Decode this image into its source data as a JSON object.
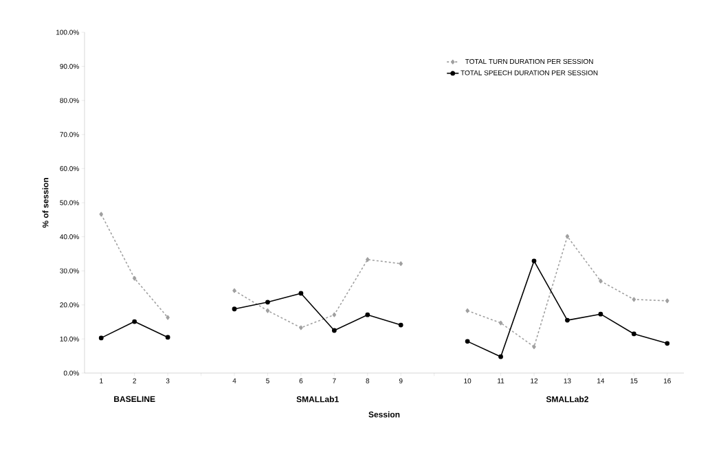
{
  "chart_data": {
    "type": "line",
    "xlabel": "Session",
    "ylabel": "% of session",
    "categories": [
      "1",
      "2",
      "3",
      null,
      "4",
      "5",
      "6",
      "7",
      "8",
      "9",
      null,
      "10",
      "11",
      "12",
      "13",
      "14",
      "15",
      "16"
    ],
    "series": [
      {
        "name": "TOTAL TURN DURATION PER SESSION",
        "color": "#a0a0a0",
        "marker": "diamond",
        "line_style": "dashed",
        "values": [
          46.6,
          27.8,
          16.3,
          null,
          24.2,
          18.3,
          13.3,
          17.1,
          33.3,
          32.1,
          null,
          18.3,
          14.7,
          7.7,
          40.1,
          27.0,
          21.6,
          21.2
        ]
      },
      {
        "name": "TOTAL SPEECH DURATION PER SESSION",
        "color": "#000000",
        "marker": "circle",
        "line_style": "solid",
        "values": [
          10.3,
          15.1,
          10.5,
          null,
          18.8,
          20.8,
          23.4,
          12.5,
          17.1,
          14.1,
          null,
          9.3,
          4.8,
          32.9,
          15.5,
          17.3,
          11.5,
          8.7
        ]
      }
    ],
    "ylim": [
      0,
      100
    ],
    "yticks": [
      {
        "value": 0,
        "label": "0.0%"
      },
      {
        "value": 10,
        "label": "10.0%"
      },
      {
        "value": 20,
        "label": "20.0%"
      },
      {
        "value": 30,
        "label": "30.0%"
      },
      {
        "value": 40,
        "label": "40.0%"
      },
      {
        "value": 50,
        "label": "50.0%"
      },
      {
        "value": 60,
        "label": "60.0%"
      },
      {
        "value": 70,
        "label": "70.0%"
      },
      {
        "value": 80,
        "label": "80.0%"
      },
      {
        "value": 90,
        "label": "90.0%"
      },
      {
        "value": 100,
        "label": "100.0%"
      }
    ],
    "annotations": [
      "BASELINE",
      "SMALLab1",
      "SMALLab2"
    ],
    "grid": false,
    "legend": "top right"
  }
}
